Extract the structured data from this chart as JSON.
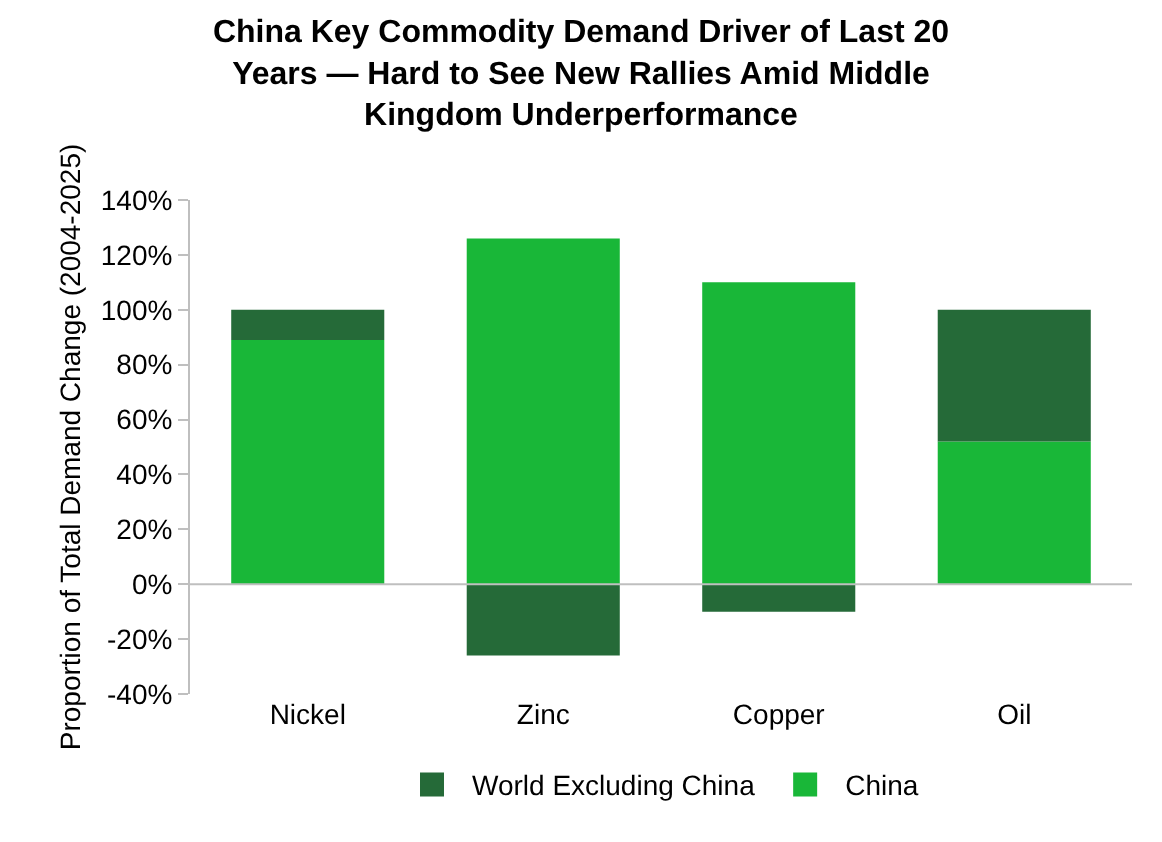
{
  "chart_data": {
    "type": "bar",
    "title": "China Key Commodity Demand Driver of Last 20 Years — Hard to See New Rallies Amid Middle Kingdom Underperformance",
    "ylabel": "Proportion of Total Demand Change (2004-2025)",
    "categories": [
      "Nickel",
      "Zinc",
      "Copper",
      "Oil"
    ],
    "stacked": true,
    "series": [
      {
        "name": "China",
        "color": "#19b738",
        "values": [
          89,
          126,
          110,
          52
        ]
      },
      {
        "name": "World Excluding China",
        "color": "#256a38",
        "values": [
          11,
          -26,
          -10,
          48
        ]
      }
    ],
    "ylim": [
      -40,
      140
    ],
    "yticks": [
      {
        "value": -40,
        "label": "-40%"
      },
      {
        "value": -20,
        "label": "-20%"
      },
      {
        "value": 0,
        "label": "0%"
      },
      {
        "value": 20,
        "label": "20%"
      },
      {
        "value": 40,
        "label": "40%"
      },
      {
        "value": 60,
        "label": "60%"
      },
      {
        "value": 80,
        "label": "80%"
      },
      {
        "value": 100,
        "label": "100%"
      },
      {
        "value": 120,
        "label": "120%"
      },
      {
        "value": 140,
        "label": "140%"
      }
    ],
    "ref_lines": [
      {
        "axis": "y",
        "value": 0,
        "color": "#bfbfbf"
      }
    ],
    "grid": false,
    "legend": "bottom"
  }
}
